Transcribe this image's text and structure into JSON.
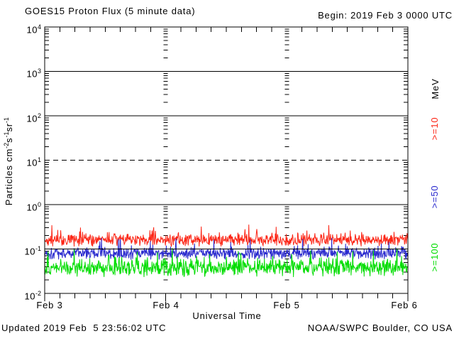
{
  "header": {
    "title": "GOES15 Proton Flux (5 minute data)",
    "begin_label": "Begin: 2019 Feb 3 0000 UTC"
  },
  "footer": {
    "updated": "Updated 2019 Feb  5 23:56:02 UTC",
    "source": "NOAA/SWPC Boulder, CO USA"
  },
  "axes": {
    "x_label": "Universal Time",
    "x_ticks": [
      "Feb 3",
      "Feb 4",
      "Feb 5",
      "Feb 6"
    ],
    "y_ticks": [
      {
        "base": "10",
        "exp": "4"
      },
      {
        "base": "10",
        "exp": "3"
      },
      {
        "base": "10",
        "exp": "2"
      },
      {
        "base": "10",
        "exp": "1"
      },
      {
        "base": "10",
        "exp": "0"
      },
      {
        "base": "10",
        "exp": "-1"
      },
      {
        "base": "10",
        "exp": "-2"
      }
    ],
    "y_label_parts": {
      "p0": "Particles cm",
      "s0": "-2",
      "p1": "s",
      "s1": "-1",
      "p2": "sr",
      "s2": "-1"
    },
    "right_unit": "MeV"
  },
  "chart_data": {
    "type": "line",
    "title": "GOES15 Proton Flux (5 minute data)",
    "xlabel": "Universal Time",
    "ylabel": "Particles cm^-2 s^-1 sr^-1",
    "begin": "2019 Feb 3 0000 UTC",
    "x_range": [
      "Feb 3",
      "Feb 6"
    ],
    "x_tick_labels": [
      "Feb 3",
      "Feb 4",
      "Feb 5",
      "Feb 6"
    ],
    "x_minor_tick_hours": 3,
    "y_scale": "log",
    "ylim": [
      0.01,
      10000
    ],
    "ylim_log": [
      -2,
      4
    ],
    "solid_gridline_decades": [
      3,
      2,
      0
    ],
    "dashed_gridline_at": 10,
    "overlay_line_at": 0.1,
    "grid_color": "#000000",
    "points_per_series": 864,
    "sample_interval_minutes": 5,
    "series": [
      {
        "name": "GOES15 protons >=10 MeV",
        "label": ">=10",
        "color": "#fc2616",
        "approx_min": 0.09,
        "approx_mean": 0.16,
        "approx_max": 0.36,
        "mu_log": -0.8,
        "amp_log": 0.16,
        "spike_prob": 0.1,
        "spike_amp": 0.25,
        "clamp_log": [
          -1.0,
          -0.44
        ],
        "seed": 42
      },
      {
        "name": "GOES15 protons >=50 MeV",
        "label": ">=50",
        "color": "#2b2bce",
        "approx_min": 0.045,
        "approx_mean": 0.08,
        "approx_max": 0.18,
        "mu_log": -1.1,
        "amp_log": 0.15,
        "spike_prob": 0.1,
        "spike_amp": 0.3,
        "clamp_log": [
          -1.35,
          -0.75
        ],
        "seed": 1337
      },
      {
        "name": "GOES15 protons >=100 MeV",
        "label": ">=100",
        "color": "#02dd02",
        "approx_min": 0.021,
        "approx_mean": 0.045,
        "approx_max": 0.1,
        "mu_log": -1.42,
        "amp_log": 0.22,
        "spike_prob": 0.12,
        "spike_amp": 0.3,
        "clamp_log": [
          -1.67,
          -0.98
        ],
        "seed": 2019
      }
    ],
    "legend_position": "right",
    "legend_unit": "MeV"
  }
}
